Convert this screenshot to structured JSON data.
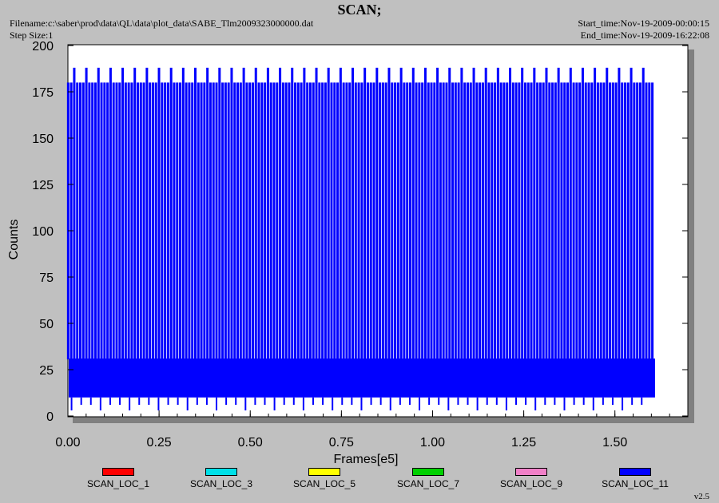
{
  "header": {
    "title": "SCAN;",
    "filename": "Filename:c:\\saber\\prod\\data\\QL\\data\\plot_data\\SABE_Tlm2009323000000.dat",
    "step_size": "Step Size:1",
    "start_time": "Start_time:Nov-19-2009-00:00:15",
    "end_time": "End_time:Nov-19-2009-16:22:08"
  },
  "version": "v2.5",
  "colors": {
    "background": "#c0c0c0",
    "plot_bg": "#ffffff",
    "series_main": "#0000ff"
  },
  "chart_data": {
    "type": "line",
    "title": "SCAN;",
    "xlabel": "Frames[e5]",
    "ylabel": "Counts",
    "xlim": [
      0,
      1.7
    ],
    "ylim": [
      0,
      200
    ],
    "xticks": [
      "0.00",
      "0.25",
      "0.50",
      "0.75",
      "1.00",
      "1.25",
      "1.50"
    ],
    "yticks": [
      "0",
      "25",
      "50",
      "75",
      "100",
      "125",
      "150",
      "175",
      "200"
    ],
    "grid": false,
    "legend_position": "bottom",
    "series": [
      {
        "name": "SCAN_LOC_1",
        "color": "#ff0000",
        "values": []
      },
      {
        "name": "SCAN_LOC_3",
        "color": "#00e0e8",
        "values": []
      },
      {
        "name": "SCAN_LOC_5",
        "color": "#ffff00",
        "values": []
      },
      {
        "name": "SCAN_LOC_7",
        "color": "#00d000",
        "values": []
      },
      {
        "name": "SCAN_LOC_9",
        "color": "#f080c8",
        "values": []
      },
      {
        "name": "SCAN_LOC_11",
        "color": "#0000ff",
        "x_range": [
          0.0,
          1.61
        ],
        "baseline_band": [
          10,
          31
        ],
        "spike_values": [
          180,
          188
        ],
        "spike_period": 0.0083,
        "tall_spike_period": 0.0335
      }
    ]
  }
}
